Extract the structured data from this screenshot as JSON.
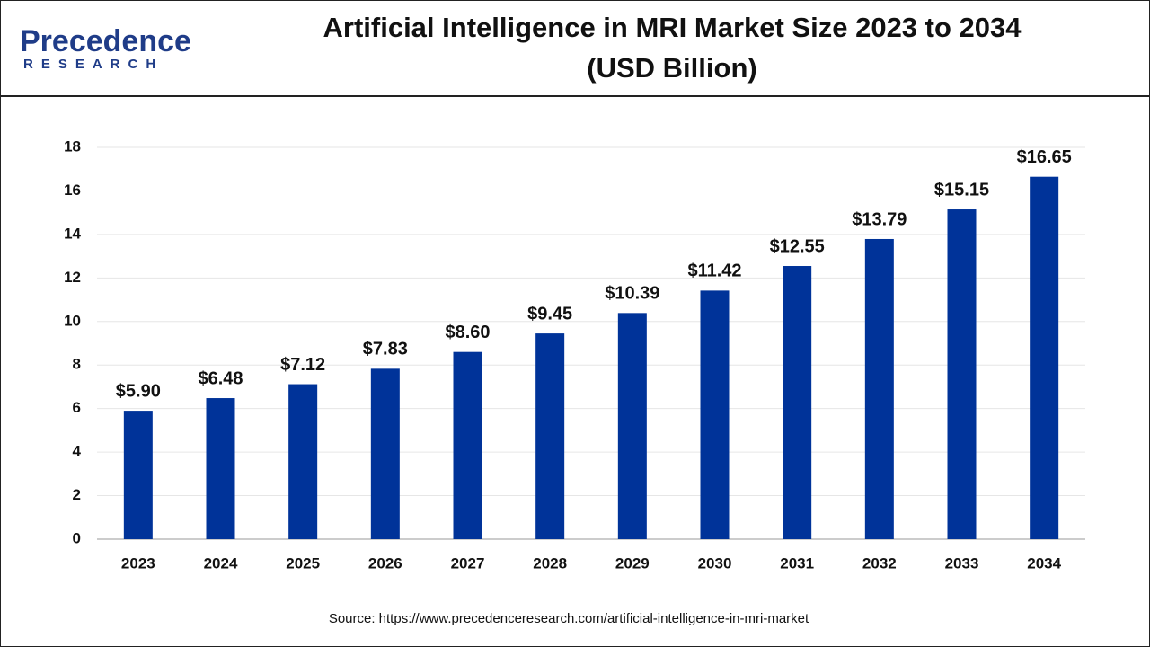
{
  "logo": {
    "name": "Precedence",
    "tagline": "RESEARCH"
  },
  "source": "Source: https://www.precedenceresearch.com/artificial-intelligence-in-mri-market",
  "chart_data": {
    "type": "bar",
    "title": "Artificial Intelligence in MRI Market Size 2023 to 2034",
    "subtitle": "(USD Billion)",
    "categories": [
      "2023",
      "2024",
      "2025",
      "2026",
      "2027",
      "2028",
      "2029",
      "2030",
      "2031",
      "2032",
      "2033",
      "2034"
    ],
    "values": [
      5.9,
      6.48,
      7.12,
      7.83,
      8.6,
      9.45,
      10.39,
      11.42,
      12.55,
      13.79,
      15.15,
      16.65
    ],
    "value_labels": [
      "$5.90",
      "$6.48",
      "$7.12",
      "$7.83",
      "$8.60",
      "$9.45",
      "$10.39",
      "$11.42",
      "$12.55",
      "$13.79",
      "$15.15",
      "$16.65"
    ],
    "color": "#003399",
    "ylim": [
      0,
      18
    ],
    "yticks": [
      0,
      2,
      4,
      6,
      8,
      10,
      12,
      14,
      16,
      18
    ],
    "grid": true
  }
}
